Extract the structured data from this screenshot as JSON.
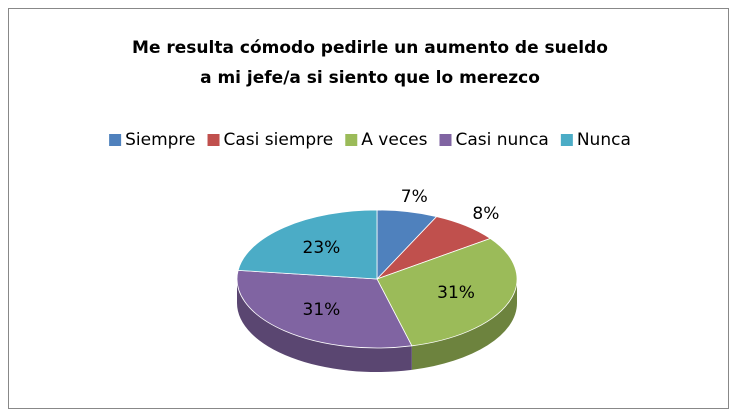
{
  "chart_data": {
    "type": "pie",
    "title": [
      "Me resulta cómodo pedirle un aumento de sueldo",
      "a mi jefe/a si siento que lo merezco"
    ],
    "categories": [
      "Siempre",
      "Casi siempre",
      "A veces",
      "Casi nunca",
      "Nunca"
    ],
    "values": [
      7,
      8,
      31,
      31,
      23
    ],
    "value_labels": [
      "7%",
      "8%",
      "31%",
      "31%",
      "23%"
    ],
    "colors": [
      "#4f81bd",
      "#c0504d",
      "#9bbb59",
      "#8064a2",
      "#4bacc6"
    ],
    "legend": "top"
  }
}
